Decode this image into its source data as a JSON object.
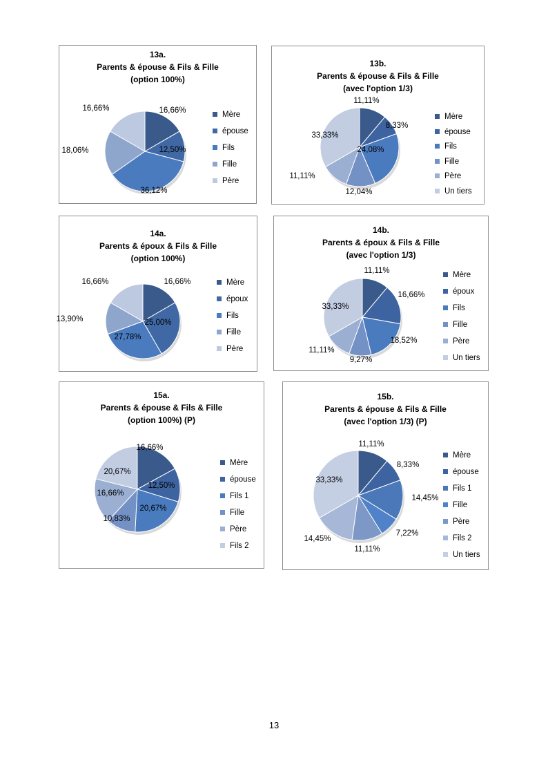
{
  "page_number": "13",
  "chart_data": [
    {
      "type": "pie",
      "title": [
        "13a.",
        "Parents & épouse & Fils & Fille",
        "(option 100%)"
      ],
      "legend": [
        "Mère",
        "épouse",
        "Fils",
        "Fille",
        "Père"
      ],
      "slices": [
        {
          "name": "Mère",
          "value": 16.66,
          "label": "16,66%",
          "color": "#3a5a8c"
        },
        {
          "name": "épouse",
          "value": 12.5,
          "label": "12,50%",
          "color": "#3f68a4"
        },
        {
          "name": "Fils",
          "value": 36.12,
          "label": "36,12%",
          "color": "#4a7bbf"
        },
        {
          "name": "Fille",
          "value": 18.06,
          "label": "18,06%",
          "color": "#8fa6cc"
        },
        {
          "name": "Père",
          "value": 16.66,
          "label": "16,66%",
          "color": "#bcc9e0"
        }
      ],
      "legend_colors": [
        "#3a5a8c",
        "#3f68a4",
        "#4a7bbf",
        "#8fa6cc",
        "#bcc9e0"
      ]
    },
    {
      "type": "pie",
      "title": [
        "13b.",
        "Parents & épouse & Fils & Fille",
        "(avec l'option 1/3)"
      ],
      "legend": [
        "Mère",
        "épouse",
        "Fils",
        "Fille",
        "Père",
        "Un tiers"
      ],
      "slices": [
        {
          "name": "Mère",
          "value": 11.11,
          "label": "11,11%",
          "color": "#3a5a8c"
        },
        {
          "name": "épouse",
          "value": 8.33,
          "label": "8,33%",
          "color": "#3d63a0"
        },
        {
          "name": "Fils",
          "value": 24.08,
          "label": "24,08%",
          "color": "#4a7bbf"
        },
        {
          "name": "Fille",
          "value": 12.04,
          "label": "12,04%",
          "color": "#7391c4"
        },
        {
          "name": "Père",
          "value": 11.11,
          "label": "11,11%",
          "color": "#9aafd2"
        },
        {
          "name": "Un tiers",
          "value": 33.33,
          "label": "33,33%",
          "color": "#c2cde2"
        }
      ],
      "legend_colors": [
        "#3a5a8c",
        "#3d63a0",
        "#4a7bbf",
        "#7391c4",
        "#9aafd2",
        "#c2cde2"
      ]
    },
    {
      "type": "pie",
      "title": [
        "14a.",
        "Parents & époux & Fils & Fille",
        "(option 100%)"
      ],
      "legend": [
        "Mère",
        "époux",
        "Fils",
        "Fille",
        "Père"
      ],
      "slices": [
        {
          "name": "Mère",
          "value": 16.66,
          "label": "16,66%",
          "color": "#3a5a8c"
        },
        {
          "name": "époux",
          "value": 25.0,
          "label": "25,00%",
          "color": "#3f68a4"
        },
        {
          "name": "Fils",
          "value": 27.78,
          "label": "27,78%",
          "color": "#4a7bbf"
        },
        {
          "name": "Fille",
          "value": 13.9,
          "label": "13,90%",
          "color": "#8fa6cc"
        },
        {
          "name": "Père",
          "value": 16.66,
          "label": "16,66%",
          "color": "#bcc9e0"
        }
      ],
      "legend_colors": [
        "#3a5a8c",
        "#3f68a4",
        "#4a7bbf",
        "#8fa6cc",
        "#bcc9e0"
      ]
    },
    {
      "type": "pie",
      "title": [
        "14b.",
        "Parents & époux & Fils & Fille",
        "(avec l'option 1/3)"
      ],
      "legend": [
        "Mère",
        "époux",
        "Fils",
        "Fille",
        "Père",
        "Un tiers"
      ],
      "slices": [
        {
          "name": "Mère",
          "value": 11.11,
          "label": "11,11%",
          "color": "#3a5a8c"
        },
        {
          "name": "époux",
          "value": 16.66,
          "label": "16,66%",
          "color": "#3d63a0"
        },
        {
          "name": "Fils",
          "value": 18.52,
          "label": "18,52%",
          "color": "#4a7bbf"
        },
        {
          "name": "Fille",
          "value": 9.27,
          "label": "9,27%",
          "color": "#7391c4"
        },
        {
          "name": "Père",
          "value": 11.11,
          "label": "11,11%",
          "color": "#9aafd2"
        },
        {
          "name": "Un tiers",
          "value": 33.33,
          "label": "33,33%",
          "color": "#c2cde2"
        }
      ],
      "legend_colors": [
        "#3a5a8c",
        "#3d63a0",
        "#4a7bbf",
        "#7391c4",
        "#9aafd2",
        "#c2cde2"
      ]
    },
    {
      "type": "pie",
      "title": [
        "15a.",
        "Parents & épouse & Fils & Fille",
        "(option 100%) (P)"
      ],
      "legend": [
        "Mère",
        "épouse",
        "Fils 1",
        "Fille",
        "Père",
        "Fils 2"
      ],
      "slices": [
        {
          "name": "Mère",
          "value": 16.66,
          "label": "16,66%",
          "color": "#3a5a8c"
        },
        {
          "name": "épouse",
          "value": 12.5,
          "label": "12,50%",
          "color": "#3d63a0"
        },
        {
          "name": "Fils 1",
          "value": 20.67,
          "label": "20,67%",
          "color": "#4a7bbf"
        },
        {
          "name": "Fille",
          "value": 10.83,
          "label": "10,83%",
          "color": "#7391c4"
        },
        {
          "name": "Père",
          "value": 16.66,
          "label": "16,66%",
          "color": "#9aafd2"
        },
        {
          "name": "Fils 2",
          "value": 20.67,
          "label": "20,67%",
          "color": "#c2cde2"
        }
      ],
      "legend_colors": [
        "#3a5a8c",
        "#3d63a0",
        "#4a7bbf",
        "#7391c4",
        "#9aafd2",
        "#c2cde2"
      ]
    },
    {
      "type": "pie",
      "title": [
        "15b.",
        "Parents & épouse & Fils & Fille",
        "(avec l'option 1/3) (P)"
      ],
      "legend": [
        "Mère",
        "épouse",
        "Fils 1",
        "Fille",
        "Père",
        "Fils 2",
        "Un tiers"
      ],
      "slices": [
        {
          "name": "Mère",
          "value": 11.11,
          "label": "11,11%",
          "color": "#3a5a8c"
        },
        {
          "name": "épouse",
          "value": 8.33,
          "label": "8,33%",
          "color": "#3d63a0"
        },
        {
          "name": "Fils 1",
          "value": 14.45,
          "label": "14,45%",
          "color": "#4a78b8"
        },
        {
          "name": "Fille",
          "value": 7.22,
          "label": "7,22%",
          "color": "#4f82c8"
        },
        {
          "name": "Père",
          "value": 11.11,
          "label": "11,11%",
          "color": "#7d97c6"
        },
        {
          "name": "Fils 2",
          "value": 14.45,
          "label": "14,45%",
          "color": "#a6b7d7"
        },
        {
          "name": "Un tiers",
          "value": 33.33,
          "label": "33,33%",
          "color": "#c4cfe3"
        }
      ],
      "legend_colors": [
        "#3a5a8c",
        "#3d63a0",
        "#4a78b8",
        "#4f82c8",
        "#7d97c6",
        "#a6b7d7",
        "#c4cfe3"
      ]
    }
  ]
}
